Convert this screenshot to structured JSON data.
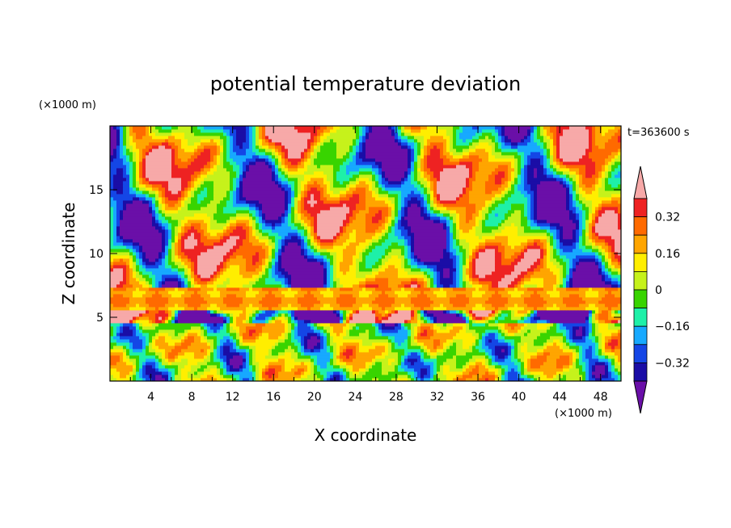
{
  "chart_data": {
    "type": "heatmap",
    "title": "potential temperature deviation",
    "xlabel": "X coordinate",
    "ylabel": "Z coordinate",
    "x_unit": "(×1000 m)",
    "y_unit": "(×1000 m)",
    "time_label": "t=363600 s",
    "xlim": [
      0,
      50
    ],
    "ylim": [
      0,
      20
    ],
    "x_ticks": [
      "4",
      "8",
      "12",
      "16",
      "20",
      "24",
      "28",
      "32",
      "36",
      "40",
      "44",
      "48"
    ],
    "y_ticks": [
      "5",
      "10",
      "15"
    ],
    "colorbar": {
      "levels": [
        -0.4,
        -0.32,
        -0.24,
        -0.16,
        -0.08,
        0,
        0.08,
        0.16,
        0.24,
        0.32,
        0.4
      ],
      "tick_labels": [
        "0.32",
        "0.16",
        "0",
        "−0.16",
        "−0.32"
      ],
      "colors": [
        "#6a0fa8",
        "#1a0da6",
        "#1446e6",
        "#17a9ff",
        "#1ef0a8",
        "#38d400",
        "#c6f21b",
        "#ffee00",
        "#ffa500",
        "#ff6a00",
        "#ee2222",
        "#f7a9a8"
      ],
      "extend": "both"
    }
  }
}
